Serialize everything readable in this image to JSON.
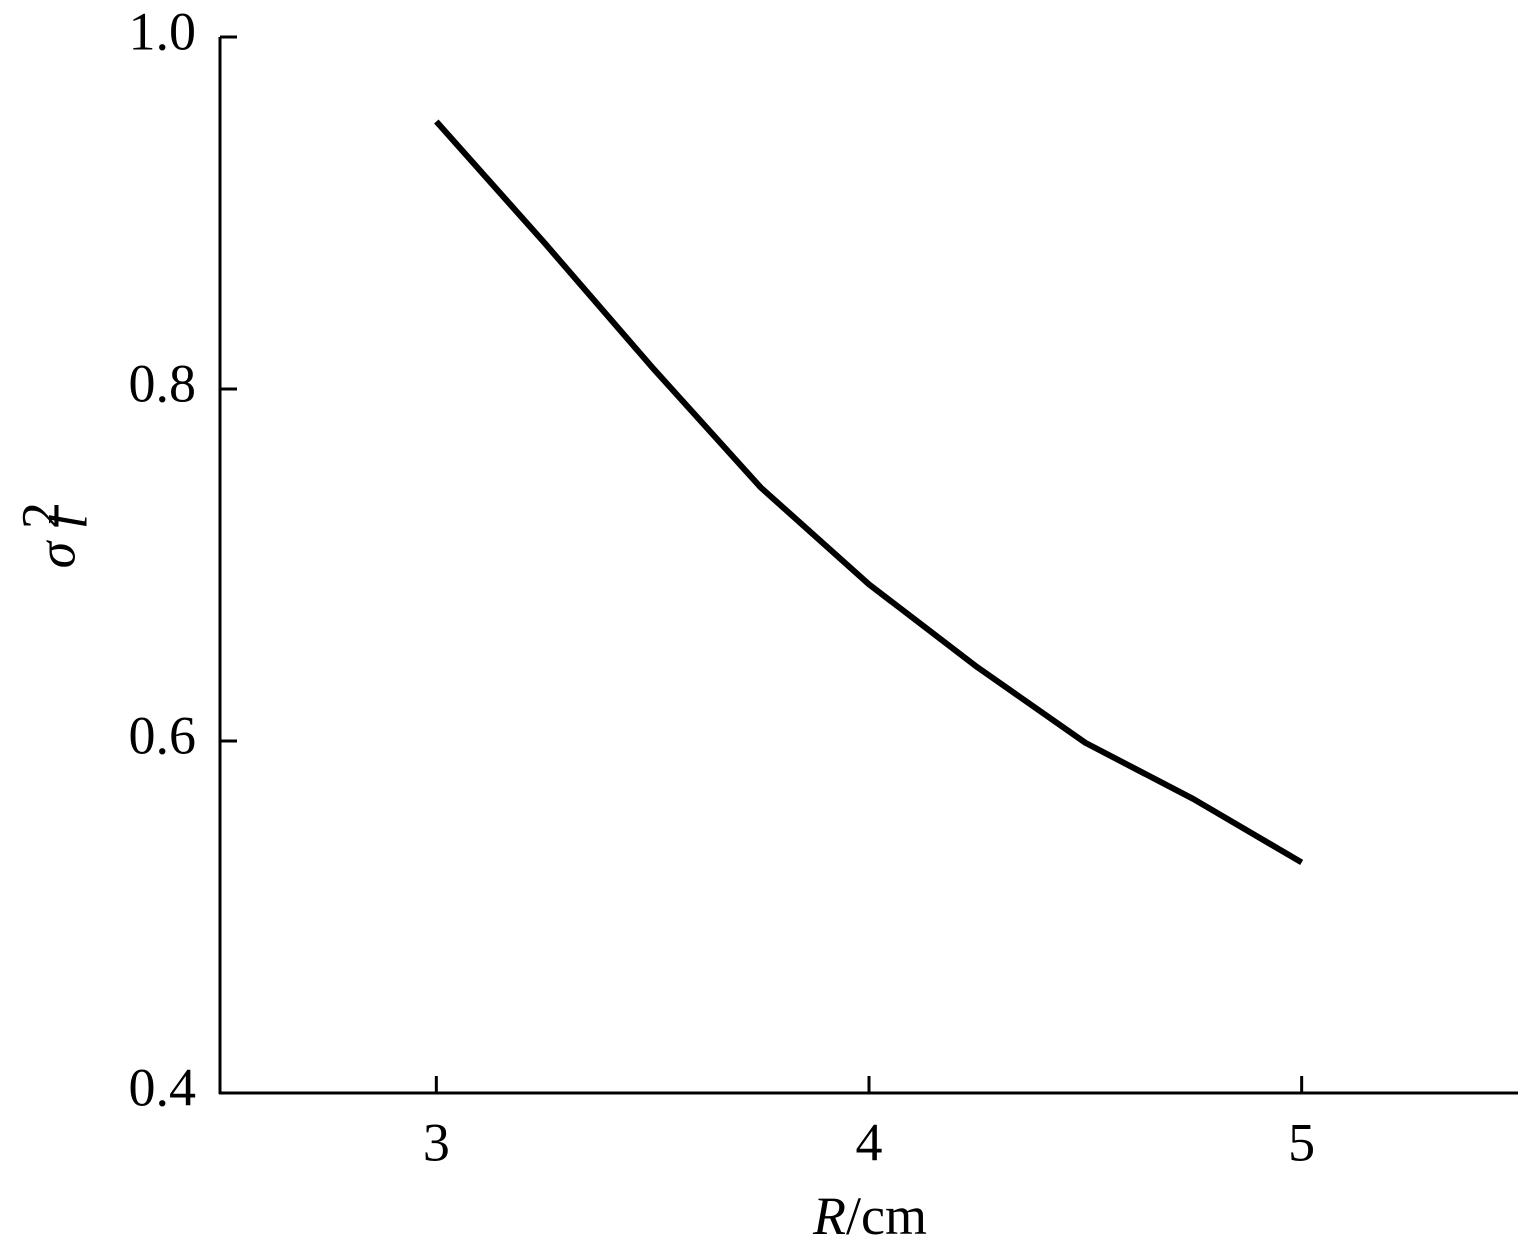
{
  "chart_data": {
    "type": "line",
    "x_label_var": "R",
    "x_label_unit": "/cm",
    "y_label": "σ",
    "y_label_sub": "l",
    "y_label_sup": "2",
    "x": [
      3,
      3.25,
      3.5,
      3.75,
      4,
      4.25,
      4.5,
      4.75,
      5
    ],
    "series": [
      {
        "color": "#000000",
        "values": [
          0.952,
          0.883,
          0.812,
          0.744,
          0.689,
          0.642,
          0.599,
          0.567,
          0.531
        ]
      }
    ],
    "xlim": [
      2.5,
      5.5
    ],
    "xticks": [
      3,
      4,
      5
    ],
    "ylim": [
      0.4,
      1.0
    ],
    "yticks": [
      0.4,
      0.6,
      0.8,
      {
        "value": 1.0,
        "label": "1.0"
      }
    ]
  }
}
